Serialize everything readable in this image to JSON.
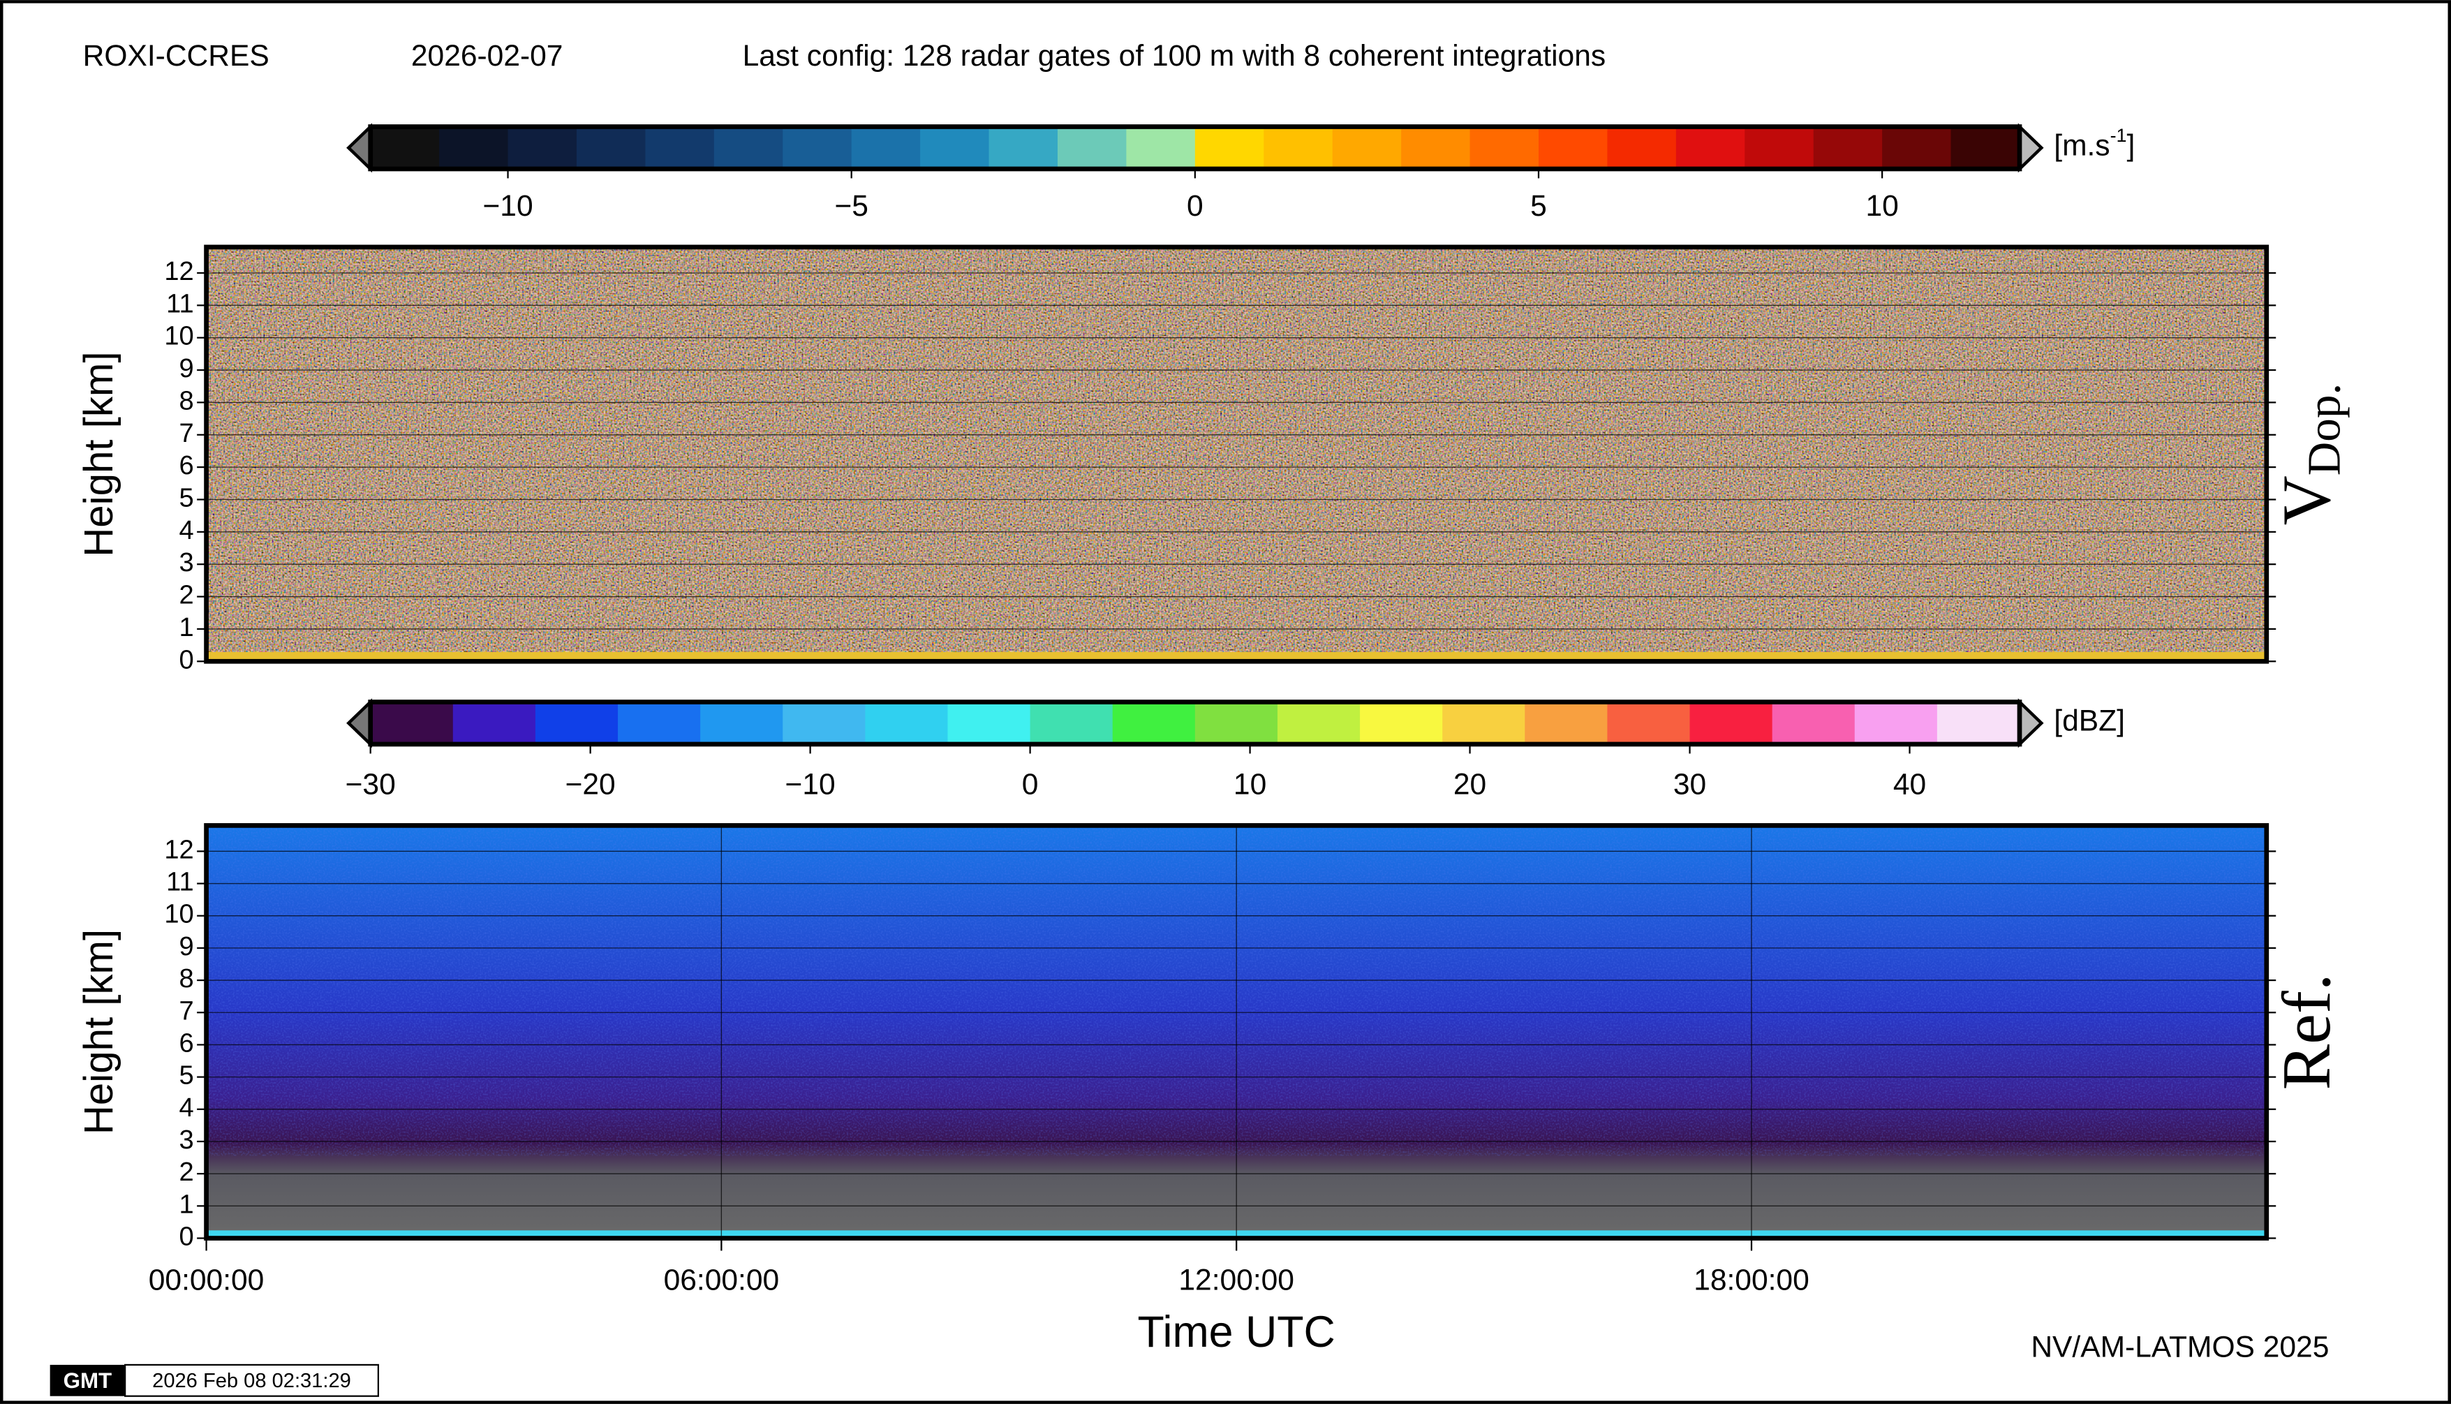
{
  "header": {
    "station": "ROXI-CCRES",
    "date": "2026-02-07",
    "config": "Last config: 128 radar gates of 100 m with 8 coherent integrations"
  },
  "chart_data": [
    {
      "type": "heatmap",
      "label": "V",
      "label_sub": "Dop.",
      "ylabel": "Height [km]",
      "ylim": [
        0,
        12.8
      ],
      "yticks": [
        0,
        1,
        2,
        3,
        4,
        5,
        6,
        7,
        8,
        9,
        10,
        11,
        12
      ],
      "xlim": [
        0,
        24
      ],
      "grid": true,
      "colorbar": {
        "unit": "[m.s",
        "unit_sup": "-1",
        "unit_end": "]",
        "lim": [
          -12,
          12
        ],
        "ticks": [
          {
            "value": -10,
            "label": "−10"
          },
          {
            "value": -5,
            "label": "−5"
          },
          0,
          5,
          10
        ],
        "colors": [
          "#111111",
          "#0c1428",
          "#0e1e3e",
          "#102c56",
          "#123a6c",
          "#154c82",
          "#185e96",
          "#1b72aa",
          "#208abc",
          "#36a8c4",
          "#6ccab8",
          "#9ee6a6",
          "#ffd700",
          "#ffc000",
          "#ffa800",
          "#ff8c00",
          "#ff6a00",
          "#ff4a00",
          "#f42a00",
          "#e01010",
          "#c00a0a",
          "#960808",
          "#6a0606",
          "#3a0404"
        ]
      }
    },
    {
      "type": "heatmap",
      "label": "Ref.",
      "ylabel": "Height [km]",
      "xlabel": "Time UTC",
      "ylim": [
        0,
        12.8
      ],
      "yticks": [
        0,
        1,
        2,
        3,
        4,
        5,
        6,
        7,
        8,
        9,
        10,
        11,
        12
      ],
      "xlim": [
        0,
        24
      ],
      "xticks": [
        {
          "value": 0,
          "label": "00:00:00"
        },
        {
          "value": 6,
          "label": "06:00:00"
        },
        {
          "value": 12,
          "label": "12:00:00"
        },
        {
          "value": 18,
          "label": "18:00:00"
        }
      ],
      "grid": true,
      "colorbar": {
        "unit": "[dBZ]",
        "lim": [
          -30,
          45
        ],
        "ticks": [
          {
            "value": -30,
            "label": "−30"
          },
          {
            "value": -20,
            "label": "−20"
          },
          {
            "value": -10,
            "label": "−10"
          },
          0,
          10,
          20,
          30,
          40
        ],
        "colors": [
          "#3a0a4a",
          "#3a1ac0",
          "#1040e8",
          "#1870f0",
          "#2098f0",
          "#40b8f0",
          "#30d0f0",
          "#40f0f0",
          "#40e0b0",
          "#40f040",
          "#80e040",
          "#c0f040",
          "#f8f840",
          "#f8d040",
          "#f8a040",
          "#f86040",
          "#f82040",
          "#f860b0",
          "#f8a0f0",
          "#f8e0f8"
        ]
      }
    }
  ],
  "footer": {
    "credit": "NV/AM-LATMOS 2025",
    "logo": "GMT",
    "timestamp": "2026 Feb 08 02:31:29"
  }
}
